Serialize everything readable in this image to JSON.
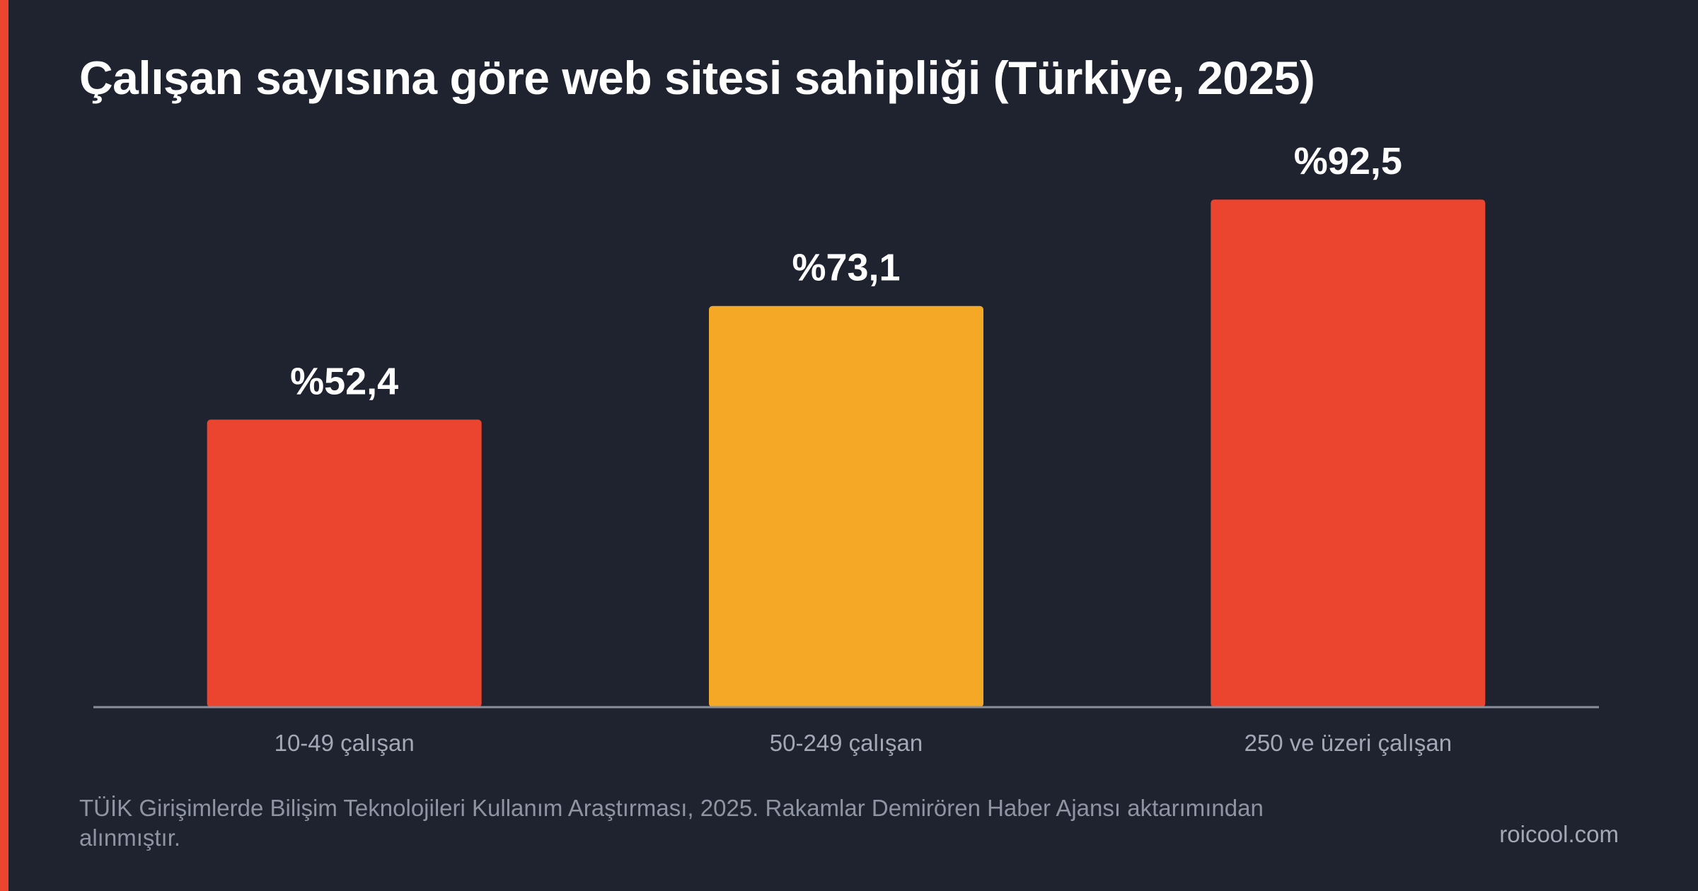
{
  "colors": {
    "background": "#1f2330",
    "accent": "#eb4530",
    "highlight": "#f4a826",
    "axis": "#8a8f9e",
    "text": "#ffffff",
    "muted_text": "#a3a8b6"
  },
  "header": {
    "title": "Çalışan sayısına göre web sitesi sahipliği (Türkiye, 2025)"
  },
  "chart_data": {
    "type": "bar",
    "title": "Çalışan sayısına göre web sitesi sahipliği (Türkiye, 2025)",
    "categories": [
      "10-49 çalışan",
      "50-249 çalışan",
      "250 ve üzeri çalışan"
    ],
    "values": [
      52.4,
      73.1,
      92.5
    ],
    "value_labels": [
      "%52,4",
      "%73,1",
      "%92,5"
    ],
    "bar_colors": [
      "#eb4530",
      "#f4a826",
      "#eb4530"
    ],
    "unit": "%",
    "xlabel": "",
    "ylabel": "",
    "ylim": [
      0,
      100
    ],
    "grid": false,
    "legend": "none"
  },
  "footer": {
    "source": "TÜİK Girişimlerde Bilişim Teknolojileri Kullanım Araştırması, 2025. Rakamlar Demirören Haber Ajansı aktarımından alınmıştır.",
    "brand": "roicool.com"
  }
}
